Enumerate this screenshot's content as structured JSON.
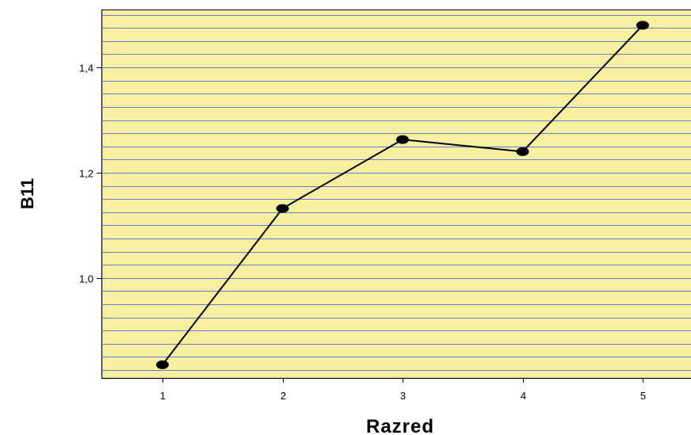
{
  "chart_data": {
    "type": "line",
    "xlabel": "Razred",
    "ylabel": "B11",
    "x": [
      1,
      2,
      3,
      4,
      5
    ],
    "x_tick_labels": [
      "1",
      "2",
      "3",
      "4",
      "5"
    ],
    "y_tick_labels": [
      "1,0",
      "1,2",
      "1,4"
    ],
    "y_tick_values": [
      1.0,
      1.2,
      1.4
    ],
    "series": [
      {
        "values": [
          0.835,
          1.132,
          1.263,
          1.24,
          1.48
        ]
      }
    ],
    "ylim": [
      0.81,
      1.51
    ],
    "grid": true,
    "legend": "none"
  },
  "colors": {
    "plot_background": "#F8F0A0",
    "grid_line": "#5F7FC8",
    "line": "#000000",
    "marker": "#000000"
  }
}
